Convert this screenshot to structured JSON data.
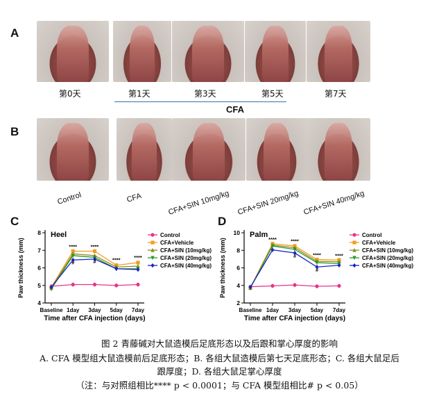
{
  "panelA": {
    "letter": "A",
    "days": [
      "第0天",
      "第1天",
      "第3天",
      "第5天",
      "第7天"
    ],
    "group_label": "CFA"
  },
  "panelB": {
    "letter": "B",
    "groups": [
      "Control",
      "CFA",
      "CFA+SIN 10mg/kg",
      "CFA+SIN 20mg/kg",
      "CFA+SIN 40mg/kg"
    ]
  },
  "legend_entries": [
    "Control",
    "CFA+Vehicle",
    "CFA+SIN (10mg/kg)",
    "CFA+SIN (20mg/kg)",
    "CFA+SIN (40mg/kg)"
  ],
  "colors": {
    "control": "#e8338a",
    "vehicle": "#f39c1e",
    "sin10": "#8e8a1e",
    "sin20": "#2a9a2a",
    "sin40": "#1a22c8"
  },
  "chart_data": [
    {
      "type": "line",
      "panel": "C",
      "title": "Heel",
      "xlabel": "Time after CFA injection (days)",
      "ylabel": "Paw thickness (mm)",
      "categories": [
        "Baseline",
        "1day",
        "3day",
        "5day",
        "7day"
      ],
      "ylim": [
        4,
        8
      ],
      "yticks": [
        4,
        5,
        6,
        7,
        8
      ],
      "series": [
        {
          "name": "Control",
          "values": [
            4.95,
            5.05,
            5.05,
            5.0,
            5.05
          ]
        },
        {
          "name": "CFA+Vehicle",
          "values": [
            4.9,
            6.95,
            6.95,
            6.15,
            6.3
          ]
        },
        {
          "name": "CFA+SIN (10mg/kg)",
          "values": [
            4.85,
            6.8,
            6.7,
            6.05,
            6.1
          ]
        },
        {
          "name": "CFA+SIN (20mg/kg)",
          "values": [
            4.8,
            6.7,
            6.6,
            5.95,
            5.95
          ]
        },
        {
          "name": "CFA+SIN (40mg/kg)",
          "values": [
            4.9,
            6.45,
            6.5,
            5.95,
            5.9
          ]
        }
      ],
      "annotations": [
        {
          "text": "****",
          "x": "1day",
          "y": 7.1
        },
        {
          "text": "****",
          "x": "3day",
          "y": 7.1
        },
        {
          "text": "****",
          "x": "5day",
          "y": 6.35
        },
        {
          "text": "****",
          "x": "7day",
          "y": 6.5
        },
        {
          "text": "#",
          "x": "1day",
          "y": 6.2
        },
        {
          "text": "#",
          "x": "3day",
          "y": 6.25
        }
      ]
    },
    {
      "type": "line",
      "panel": "D",
      "title": "Palm",
      "xlabel": "Time after CFA injection (days)",
      "ylabel": "Paw thickness (mm)",
      "categories": [
        "Baseline",
        "1day",
        "3day",
        "5day",
        "7day"
      ],
      "ylim": [
        2,
        10
      ],
      "yticks": [
        2,
        4,
        6,
        8,
        10
      ],
      "series": [
        {
          "name": "Control",
          "values": [
            3.85,
            3.95,
            4.05,
            3.9,
            3.95
          ]
        },
        {
          "name": "CFA+Vehicle",
          "values": [
            3.75,
            8.75,
            8.5,
            6.95,
            6.9
          ]
        },
        {
          "name": "CFA+SIN (10mg/kg)",
          "values": [
            3.7,
            8.6,
            8.3,
            6.75,
            6.7
          ]
        },
        {
          "name": "CFA+SIN (20mg/kg)",
          "values": [
            3.7,
            8.5,
            8.1,
            6.6,
            6.5
          ]
        },
        {
          "name": "CFA+SIN (40mg/kg)",
          "values": [
            3.8,
            8.05,
            7.7,
            6.1,
            6.3
          ]
        }
      ],
      "annotations": [
        {
          "text": "****",
          "x": "1day",
          "y": 9.05
        },
        {
          "text": "****",
          "x": "3day",
          "y": 8.85
        },
        {
          "text": "****",
          "x": "5day",
          "y": 7.25
        },
        {
          "text": "****",
          "x": "7day",
          "y": 7.2
        },
        {
          "text": "#",
          "x": "3day",
          "y": 7.15
        },
        {
          "text": "#",
          "x": "5day",
          "y": 5.55
        }
      ]
    }
  ],
  "caption": {
    "line1": "图 2  青藤碱对大鼠造模后足底形态以及后跟和掌心厚度的影响",
    "line2": "A. CFA 模型组大鼠造模前后足底形态；B. 各组大鼠造模后第七天足底形态；C. 各组大鼠足后",
    "line3": "跟厚度；D. 各组大鼠足掌心厚度",
    "line4": "（注：与对照组相比**** p < 0.0001；与 CFA 模型组相比# p < 0.05）"
  }
}
